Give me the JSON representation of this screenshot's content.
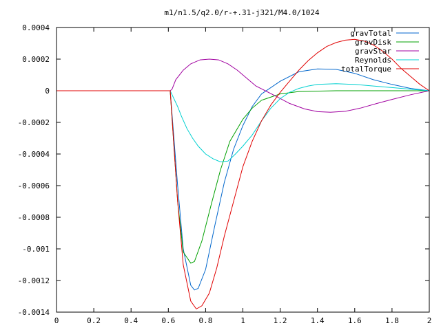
{
  "chart_data": {
    "type": "line",
    "title": "m1/n1.5/q2.0/r-+.31-j321/M4.0/1024",
    "xlabel": "",
    "ylabel": "",
    "xlim": [
      0,
      2
    ],
    "ylim": [
      -0.0014,
      0.0004
    ],
    "x_ticks": [
      {
        "v": 0,
        "label": "0"
      },
      {
        "v": 0.2,
        "label": "0.2"
      },
      {
        "v": 0.4,
        "label": "0.4"
      },
      {
        "v": 0.6,
        "label": "0.6"
      },
      {
        "v": 0.8,
        "label": "0.8"
      },
      {
        "v": 1.0,
        "label": "1"
      },
      {
        "v": 1.2,
        "label": "1.2"
      },
      {
        "v": 1.4,
        "label": "1.4"
      },
      {
        "v": 1.6,
        "label": "1.6"
      },
      {
        "v": 1.8,
        "label": "1.8"
      },
      {
        "v": 2.0,
        "label": "2"
      }
    ],
    "y_ticks": [
      {
        "v": 0.0004,
        "label": "0.0004"
      },
      {
        "v": 0.0002,
        "label": "0.0002"
      },
      {
        "v": 0,
        "label": "0"
      },
      {
        "v": -0.0002,
        "label": "-0.0002"
      },
      {
        "v": -0.0004,
        "label": "-0.0004"
      },
      {
        "v": -0.0006,
        "label": "-0.0006"
      },
      {
        "v": -0.0008,
        "label": "-0.0008"
      },
      {
        "v": -0.001,
        "label": "-0.001"
      },
      {
        "v": -0.0012,
        "label": "-0.0012"
      },
      {
        "v": -0.0014,
        "label": "-0.0014"
      }
    ],
    "grid": false,
    "legend_position": "top-right",
    "series": [
      {
        "name": "gravTotal",
        "color": "#0066cc",
        "points": [
          [
            0.61,
            0
          ],
          [
            0.63,
            -0.0003
          ],
          [
            0.65,
            -0.0006
          ],
          [
            0.68,
            -0.001
          ],
          [
            0.72,
            -0.00123
          ],
          [
            0.74,
            -0.00126
          ],
          [
            0.76,
            -0.00125
          ],
          [
            0.8,
            -0.00113
          ],
          [
            0.85,
            -0.00085
          ],
          [
            0.9,
            -0.00058
          ],
          [
            0.95,
            -0.00037
          ],
          [
            1.0,
            -0.00022
          ],
          [
            1.05,
            -0.0001
          ],
          [
            1.1,
            -2e-05
          ],
          [
            1.2,
            6e-05
          ],
          [
            1.3,
            0.00012
          ],
          [
            1.4,
            0.000138
          ],
          [
            1.5,
            0.000135
          ],
          [
            1.6,
            0.00011
          ],
          [
            1.7,
            7e-05
          ],
          [
            1.8,
            4e-05
          ],
          [
            1.9,
            1.5e-05
          ],
          [
            2.0,
            0
          ]
        ]
      },
      {
        "name": "gravDisk",
        "color": "#00a000",
        "points": [
          [
            0.61,
            0
          ],
          [
            0.63,
            -0.00035
          ],
          [
            0.65,
            -0.0007
          ],
          [
            0.68,
            -0.00102
          ],
          [
            0.72,
            -0.00109
          ],
          [
            0.74,
            -0.00108
          ],
          [
            0.78,
            -0.00095
          ],
          [
            0.83,
            -0.00072
          ],
          [
            0.88,
            -0.0005
          ],
          [
            0.93,
            -0.00032
          ],
          [
            1.0,
            -0.00018
          ],
          [
            1.05,
            -0.00011
          ],
          [
            1.1,
            -6e-05
          ],
          [
            1.2,
            -2e-05
          ],
          [
            1.3,
            -5e-06
          ],
          [
            1.5,
            0
          ],
          [
            1.7,
            0
          ],
          [
            2.0,
            0
          ]
        ]
      },
      {
        "name": "gravStar",
        "color": "#a000a0",
        "points": [
          [
            0.61,
            0
          ],
          [
            0.62,
            1e-05
          ],
          [
            0.64,
            7e-05
          ],
          [
            0.68,
            0.00013
          ],
          [
            0.72,
            0.00017
          ],
          [
            0.77,
            0.000195
          ],
          [
            0.82,
            0.0002
          ],
          [
            0.87,
            0.000195
          ],
          [
            0.92,
            0.00017
          ],
          [
            0.97,
            0.00013
          ],
          [
            1.02,
            8e-05
          ],
          [
            1.07,
            3e-05
          ],
          [
            1.12,
            0
          ],
          [
            1.17,
            -3e-05
          ],
          [
            1.25,
            -8e-05
          ],
          [
            1.33,
            -0.000115
          ],
          [
            1.4,
            -0.000132
          ],
          [
            1.47,
            -0.000136
          ],
          [
            1.55,
            -0.00013
          ],
          [
            1.63,
            -0.00011
          ],
          [
            1.72,
            -8e-05
          ],
          [
            1.8,
            -5.5e-05
          ],
          [
            1.9,
            -2.5e-05
          ],
          [
            2.0,
            0
          ]
        ]
      },
      {
        "name": "Reynolds",
        "color": "#00d0d0",
        "points": [
          [
            0.61,
            0
          ],
          [
            0.63,
            -5e-05
          ],
          [
            0.65,
            -0.0001
          ],
          [
            0.67,
            -0.00016
          ],
          [
            0.7,
            -0.00024
          ],
          [
            0.73,
            -0.0003
          ],
          [
            0.76,
            -0.00035
          ],
          [
            0.8,
            -0.0004
          ],
          [
            0.84,
            -0.00043
          ],
          [
            0.88,
            -0.00045
          ],
          [
            0.92,
            -0.000445
          ],
          [
            0.96,
            -0.0004
          ],
          [
            1.0,
            -0.00035
          ],
          [
            1.05,
            -0.00028
          ],
          [
            1.1,
            -0.00019
          ],
          [
            1.15,
            -0.00011
          ],
          [
            1.2,
            -5e-05
          ],
          [
            1.25,
            -1e-05
          ],
          [
            1.3,
            1.5e-05
          ],
          [
            1.35,
            3e-05
          ],
          [
            1.4,
            4e-05
          ],
          [
            1.5,
            4.5e-05
          ],
          [
            1.6,
            4e-05
          ],
          [
            1.7,
            3e-05
          ],
          [
            1.8,
            2e-05
          ],
          [
            1.9,
            1e-05
          ],
          [
            2.0,
            0
          ]
        ]
      },
      {
        "name": "totalTorque",
        "color": "#e00000",
        "points": [
          [
            0,
            0
          ],
          [
            0.61,
            0
          ],
          [
            0.63,
            -0.00035
          ],
          [
            0.65,
            -0.0007
          ],
          [
            0.68,
            -0.0011
          ],
          [
            0.72,
            -0.00133
          ],
          [
            0.75,
            -0.00138
          ],
          [
            0.78,
            -0.00136
          ],
          [
            0.82,
            -0.00128
          ],
          [
            0.86,
            -0.00112
          ],
          [
            0.9,
            -0.00092
          ],
          [
            0.95,
            -0.0007
          ],
          [
            1.0,
            -0.00048
          ],
          [
            1.05,
            -0.00032
          ],
          [
            1.1,
            -0.00019
          ],
          [
            1.15,
            -9e-05
          ],
          [
            1.2,
            -1e-05
          ],
          [
            1.25,
            6e-05
          ],
          [
            1.3,
            0.00013
          ],
          [
            1.35,
            0.00019
          ],
          [
            1.4,
            0.00024
          ],
          [
            1.45,
            0.00028
          ],
          [
            1.5,
            0.000305
          ],
          [
            1.55,
            0.00032
          ],
          [
            1.6,
            0.000325
          ],
          [
            1.65,
            0.000315
          ],
          [
            1.7,
            0.00029
          ],
          [
            1.75,
            0.00025
          ],
          [
            1.8,
            0.0002
          ],
          [
            1.85,
            0.00014
          ],
          [
            1.9,
            9e-05
          ],
          [
            1.95,
            4e-05
          ],
          [
            2.0,
            0
          ]
        ]
      }
    ]
  }
}
